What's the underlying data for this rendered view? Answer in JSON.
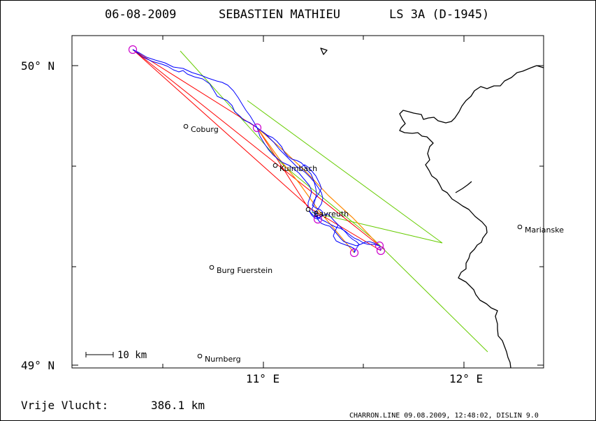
{
  "header": {
    "date": "06-08-2009",
    "pilot": "SEBASTIEN MATHIEU",
    "glider": "LS 3A (D-1945)"
  },
  "axes": {
    "lat_labels": [
      "50° N",
      "49° N"
    ],
    "lon_labels": [
      "11° E",
      "12° E"
    ]
  },
  "places": [
    {
      "name": "Coburg"
    },
    {
      "name": "Kulmbach"
    },
    {
      "name": "Bayreuth"
    },
    {
      "name": "Burg Fuerstein"
    },
    {
      "name": "Nurnberg"
    },
    {
      "name": "Marianske"
    }
  ],
  "scale_bar": {
    "label": "10 km"
  },
  "footer": {
    "distance_label": "Vrije Vlucht:",
    "distance_value": "386.1 km",
    "credits": "CHARRON.LINE 09.08.2009, 12:48:02, DISLIN 9.0"
  },
  "colors": {
    "track": "#0000ff",
    "task": "#ff0000",
    "legs_alt": "#66cc00",
    "optimized": "#ff8800",
    "turnpoint": "#cc00cc",
    "border": "#000000"
  }
}
